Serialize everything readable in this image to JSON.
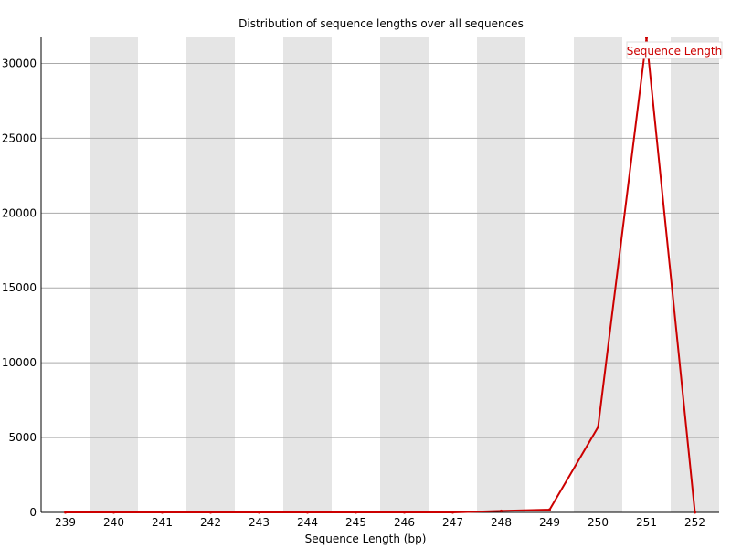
{
  "chart_data": {
    "type": "line",
    "title": "Distribution of sequence lengths over all sequences",
    "xlabel": "Sequence Length (bp)",
    "ylabel": "",
    "categories": [
      "239",
      "240",
      "241",
      "242",
      "243",
      "244",
      "245",
      "246",
      "247",
      "248",
      "249",
      "250",
      "251",
      "252"
    ],
    "series": [
      {
        "name": "Sequence Length",
        "color": "#cc0000",
        "values": [
          0,
          0,
          0,
          0,
          0,
          0,
          0,
          0,
          0,
          100,
          180,
          5700,
          31700,
          0
        ]
      }
    ],
    "ylim": [
      0,
      31800
    ],
    "yticks": [
      0,
      5000,
      10000,
      15000,
      20000,
      25000,
      30000
    ],
    "grid": true,
    "band_color": "#e5e5e5",
    "gridline_color": "#aaaaaa",
    "legend_position": "top-right"
  }
}
